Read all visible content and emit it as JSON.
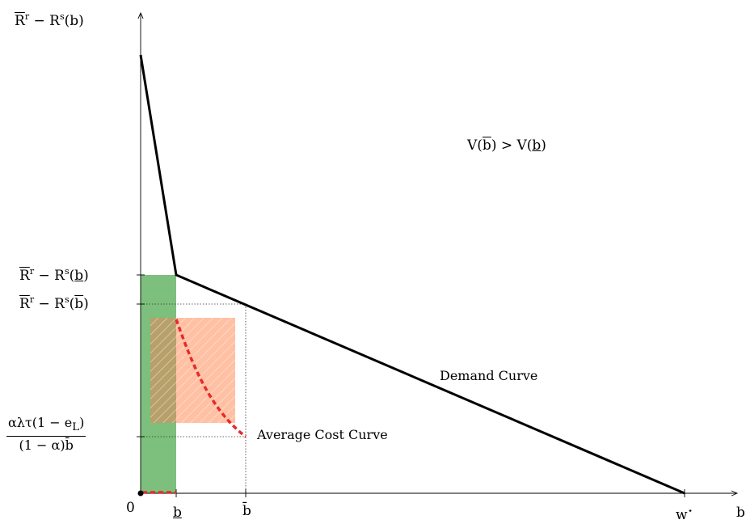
{
  "diagram": {
    "y_axis_label": "R̄ʳ − Rˢ(b)",
    "x_axis_label": "b",
    "origin_label": "0",
    "x_ticks": {
      "b_low": "b",
      "b_bar": "b̄",
      "w_star": "w",
      "w_star_sup": "⋆"
    },
    "y_ticks": {
      "rr_minus_rs_blow": "R̄ʳ − Rˢ(b)",
      "rr_minus_rs_bbar": "R̄ʳ − Rˢ(b̄)",
      "cost_fraction_numerator": "αλτ(1 − e",
      "cost_fraction_numerator_sub": "L",
      "cost_fraction_numerator_end": ")",
      "cost_fraction_denominator": "(1 − α)b̄"
    },
    "annotations": {
      "value_comparison": "V(b̄) > V(b)",
      "demand_curve": "Demand Curve",
      "average_cost_curve": "Average Cost Curve"
    },
    "colors": {
      "green_region": "#7dbf7d",
      "orange_region": "#ffb999",
      "cost_curve": "#e8292b",
      "demand_curve": "#000000",
      "overlap_region": "#b8a06a"
    }
  }
}
